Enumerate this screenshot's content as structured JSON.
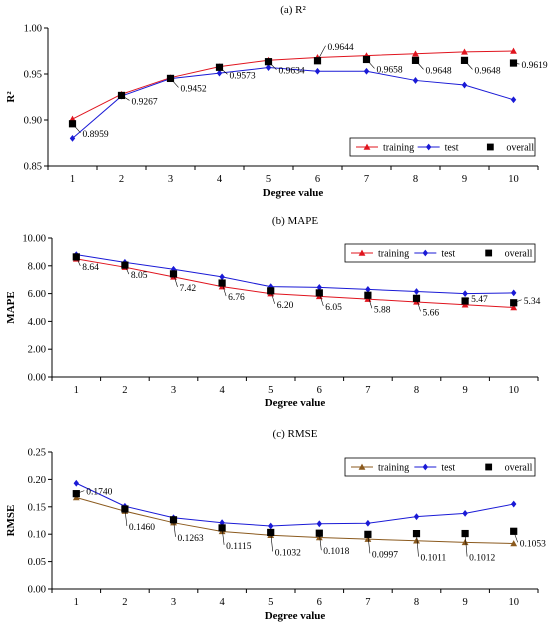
{
  "chart_data": [
    {
      "type": "line",
      "title": "(a) R²",
      "xlabel": "Degree value",
      "ylabel": "R²",
      "x": [
        1,
        2,
        3,
        4,
        5,
        6,
        7,
        8,
        9,
        10
      ],
      "xticks": [
        "1",
        "2",
        "3",
        "4",
        "5",
        "6",
        "7",
        "8",
        "9",
        "10"
      ],
      "ylim": [
        0.85,
        1.0
      ],
      "yticks": [
        "0.85",
        "0.90",
        "0.95",
        "1.00"
      ],
      "grid": false,
      "legend": "top-right",
      "colors": {
        "training": "#e0141e",
        "test": "#1a1ad6",
        "overall": "#000000"
      },
      "series": [
        {
          "name": "training",
          "marker": "triangle",
          "values": [
            0.901,
            0.928,
            0.946,
            0.958,
            0.965,
            0.968,
            0.97,
            0.972,
            0.974,
            0.975
          ]
        },
        {
          "name": "test",
          "marker": "diamond",
          "values": [
            0.88,
            0.926,
            0.945,
            0.951,
            0.957,
            0.953,
            0.953,
            0.943,
            0.938,
            0.922
          ]
        },
        {
          "name": "overall",
          "marker": "square",
          "values": [
            0.8959,
            0.9267,
            0.9452,
            0.9573,
            0.9634,
            0.9644,
            0.9658,
            0.9648,
            0.9648,
            0.9619
          ]
        }
      ],
      "annotations": [
        "0.8959",
        "0.9267",
        "0.9452",
        "0.9573",
        "0.9634",
        "0.9644",
        "0.9658",
        "0.9648",
        "0.9648",
        "0.9619"
      ]
    },
    {
      "type": "line",
      "title": "(b) MAPE",
      "xlabel": "Degree value",
      "ylabel": "MAPE",
      "x": [
        1,
        2,
        3,
        4,
        5,
        6,
        7,
        8,
        9,
        10
      ],
      "xticks": [
        "1",
        "2",
        "3",
        "4",
        "5",
        "6",
        "7",
        "8",
        "9",
        "10"
      ],
      "ylim": [
        0,
        10
      ],
      "yticks": [
        "0.00",
        "2.00",
        "4.00",
        "6.00",
        "8.00",
        "10.00"
      ],
      "grid": false,
      "legend": "top-right",
      "colors": {
        "training": "#e0141e",
        "test": "#1a1ad6",
        "overall": "#000000"
      },
      "series": [
        {
          "name": "training",
          "marker": "triangle",
          "values": [
            8.5,
            7.9,
            7.2,
            6.5,
            6.0,
            5.8,
            5.6,
            5.4,
            5.2,
            5.0
          ]
        },
        {
          "name": "test",
          "marker": "diamond",
          "values": [
            8.8,
            8.25,
            7.75,
            7.2,
            6.5,
            6.45,
            6.3,
            6.15,
            6.0,
            6.05
          ]
        },
        {
          "name": "overall",
          "marker": "square",
          "values": [
            8.64,
            8.05,
            7.42,
            6.76,
            6.2,
            6.05,
            5.88,
            5.66,
            5.47,
            5.34
          ]
        }
      ],
      "annotations": [
        "8.64",
        "8.05",
        "7.42",
        "6.76",
        "6.20",
        "6.05",
        "5.88",
        "5.66",
        "5.47",
        "5.34"
      ]
    },
    {
      "type": "line",
      "title": "(c) RMSE",
      "xlabel": "Degree value",
      "ylabel": "RMSE",
      "x": [
        1,
        2,
        3,
        4,
        5,
        6,
        7,
        8,
        9,
        10
      ],
      "xticks": [
        "1",
        "2",
        "3",
        "4",
        "5",
        "6",
        "7",
        "8",
        "9",
        "10"
      ],
      "ylim": [
        0,
        0.25
      ],
      "yticks": [
        "0.00",
        "0.05",
        "0.10",
        "0.15",
        "0.20",
        "0.25"
      ],
      "grid": false,
      "legend": "top-right",
      "colors": {
        "training": "#8b5a1e",
        "test": "#1a1ad6",
        "overall": "#000000"
      },
      "series": [
        {
          "name": "training",
          "marker": "triangle",
          "values": [
            0.167,
            0.142,
            0.121,
            0.105,
            0.098,
            0.094,
            0.091,
            0.088,
            0.085,
            0.083
          ]
        },
        {
          "name": "test",
          "marker": "diamond",
          "values": [
            0.193,
            0.151,
            0.13,
            0.121,
            0.115,
            0.119,
            0.12,
            0.132,
            0.138,
            0.155
          ]
        },
        {
          "name": "overall",
          "marker": "square",
          "values": [
            0.174,
            0.146,
            0.1263,
            0.1115,
            0.1032,
            0.1018,
            0.0997,
            0.1011,
            0.1012,
            0.1053
          ]
        }
      ],
      "annotations": [
        "0.1740",
        "0.1460",
        "0.1263",
        "0.1115",
        "0.1032",
        "0.1018",
        "0.0997",
        "0.1011",
        "0.1012",
        "0.1053"
      ]
    }
  ]
}
